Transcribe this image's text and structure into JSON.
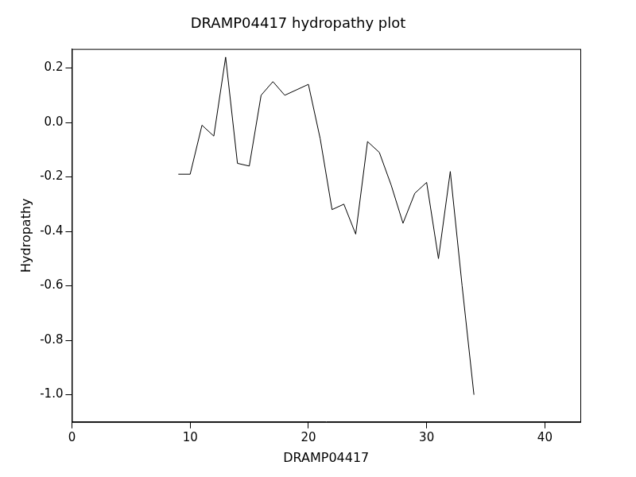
{
  "chart_data": {
    "type": "line",
    "title": "DRAMP04417 hydropathy plot",
    "x_label": "DRAMP04417",
    "y_label": "Hydropathy",
    "x": [
      9,
      10,
      11,
      12,
      13,
      14,
      15,
      16,
      17,
      18,
      19,
      20,
      21,
      22,
      23,
      24,
      25,
      26,
      27,
      28,
      29,
      30,
      31,
      32,
      33,
      34
    ],
    "values": [
      -0.19,
      -0.19,
      -0.01,
      -0.05,
      0.24,
      -0.15,
      -0.16,
      0.1,
      0.15,
      0.1,
      0.12,
      0.14,
      -0.06,
      -0.32,
      -0.3,
      -0.41,
      -0.07,
      -0.11,
      -0.23,
      -0.37,
      -0.26,
      -0.22,
      -0.5,
      -0.18,
      -0.6,
      -1.0
    ],
    "color": "#000000",
    "xlim": [
      0,
      43
    ],
    "xticks": [
      0,
      10,
      20,
      30,
      40
    ],
    "ylim": [
      -1.1,
      0.27
    ],
    "yticks": [
      {
        "value": -1.0,
        "label": "-1.0"
      },
      {
        "value": -0.8,
        "label": "-0.8"
      },
      {
        "value": -0.6,
        "label": "-0.6"
      },
      {
        "value": -0.4,
        "label": "-0.4"
      },
      {
        "value": -0.2,
        "label": "-0.2"
      },
      {
        "value": 0,
        "label": "0.0"
      },
      {
        "value": 0.2,
        "label": "0.2"
      }
    ],
    "grid": false,
    "marker": "none",
    "line_style": "solid"
  }
}
